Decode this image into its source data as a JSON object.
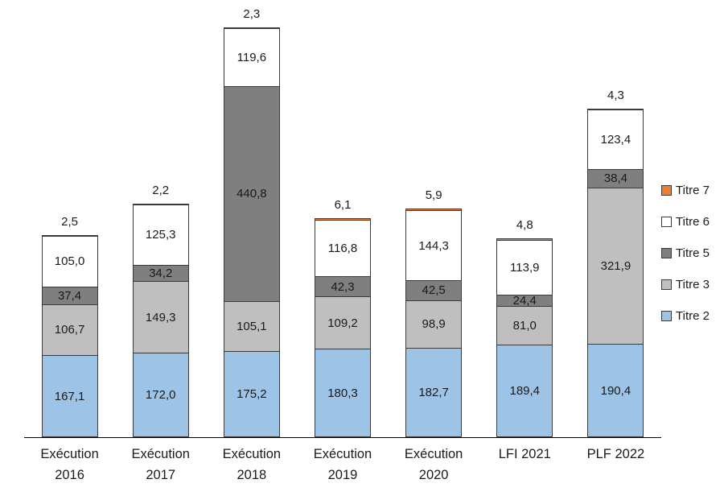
{
  "chart_data": {
    "type": "bar",
    "stacked": true,
    "title": "",
    "xlabel": "",
    "ylabel": "",
    "grid": false,
    "legend_position": "right",
    "decimal_separator": ",",
    "categories": [
      {
        "label": "Exécution 2016",
        "lines": [
          "Exécution",
          "2016"
        ]
      },
      {
        "label": "Exécution 2017",
        "lines": [
          "Exécution",
          "2017"
        ]
      },
      {
        "label": "Exécution 2018",
        "lines": [
          "Exécution",
          "2018"
        ]
      },
      {
        "label": "Exécution 2019",
        "lines": [
          "Exécution",
          "2019"
        ]
      },
      {
        "label": "Exécution 2020",
        "lines": [
          "Exécution",
          "2020"
        ]
      },
      {
        "label": "LFI 2021",
        "lines": [
          "LFI 2021"
        ]
      },
      {
        "label": "PLF 2022",
        "lines": [
          "PLF 2022"
        ]
      }
    ],
    "series": [
      {
        "name": "Titre 2",
        "color": "#9DC3E6",
        "label_position": "inside",
        "values": [
          167.1,
          172.0,
          175.2,
          180.3,
          182.7,
          189.4,
          190.4
        ]
      },
      {
        "name": "Titre 3",
        "color": "#BFBFBF",
        "label_position": "inside",
        "values": [
          106.7,
          149.3,
          105.1,
          109.2,
          98.9,
          81.0,
          321.9
        ]
      },
      {
        "name": "Titre 5",
        "color": "#7F7F7F",
        "label_position": "inside",
        "values": [
          37.4,
          34.2,
          440.8,
          42.3,
          42.5,
          24.4,
          38.4
        ]
      },
      {
        "name": "Titre 6",
        "color": "#FFFFFF",
        "label_position": "inside",
        "values": [
          105.0,
          125.3,
          119.6,
          116.8,
          144.3,
          113.9,
          123.4
        ]
      },
      {
        "name": "Titre 7",
        "color": "#ED7D31",
        "label_position": "above",
        "values": [
          2.5,
          2.2,
          2.3,
          6.1,
          5.9,
          4.8,
          4.3
        ]
      }
    ],
    "legend": [
      "Titre 7",
      "Titre 6",
      "Titre 5",
      "Titre 3",
      "Titre 2"
    ]
  }
}
